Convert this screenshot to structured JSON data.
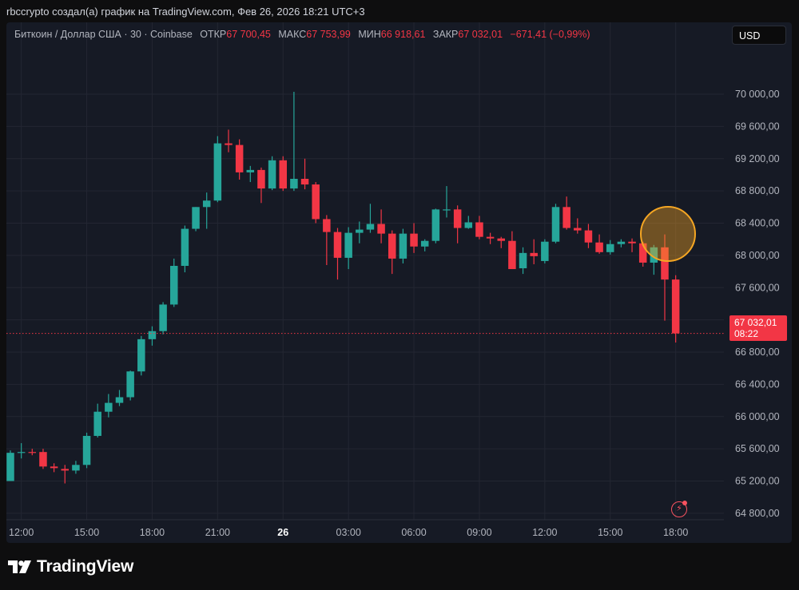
{
  "header": {
    "caption": "rbccrypto создал(а) график на TradingView.com, Фев 26, 2026 18:21 UTC+3"
  },
  "legend": {
    "symbol": "Биткоин / Доллар США · 30 · Coinbase",
    "open_label": "ОТКР",
    "open_value": "67 700,45",
    "high_label": "МАКС",
    "high_value": "67 753,99",
    "low_label": "МИН",
    "low_value": "66 918,61",
    "close_label": "ЗАКР",
    "close_value": "67 032,01",
    "change": "−671,41 (−0,99%)"
  },
  "currency_button": {
    "label": "USD"
  },
  "price_tag": {
    "price": "67 032,01",
    "countdown": "08:22"
  },
  "brand": {
    "name": "TradingView",
    "icon": "tradingview-logo-icon"
  },
  "alert_button": {
    "icon": "lightning-icon"
  },
  "colors": {
    "up": "#26a69a",
    "down": "#f23645",
    "background": "#161a25",
    "highlight": "#f5a623"
  },
  "chart_data": {
    "type": "candlestick",
    "title": "Биткоин / Доллар США · 30 · Coinbase",
    "interval_minutes": 30,
    "ylim": [
      64650,
      70350
    ],
    "y_ticks": [
      "70 000,00",
      "69 600,00",
      "69 200,00",
      "68 800,00",
      "68 400,00",
      "68 000,00",
      "67 600,00",
      "67 200,00",
      "66 800,00",
      "66 400,00",
      "66 000,00",
      "65 600,00",
      "65 200,00",
      "64 800,00"
    ],
    "y_tick_values": [
      70000,
      69600,
      69200,
      68800,
      68400,
      68000,
      67600,
      67200,
      66800,
      66400,
      66000,
      65600,
      65200,
      64800
    ],
    "x_tick_labels": [
      "12:00",
      "15:00",
      "18:00",
      "21:00",
      "26",
      "03:00",
      "06:00",
      "09:00",
      "12:00",
      "15:00",
      "18:00"
    ],
    "grid": true,
    "last_price": 67032.01,
    "highlight": "circle around candles near 16:30–17:00, price ≈ 68 000",
    "candles": [
      {
        "t": "Feb 25 11:30",
        "o": 65200,
        "h": 65580,
        "l": 65200,
        "c": 65550
      },
      {
        "t": "Feb 25 12:00",
        "o": 65550,
        "h": 65670,
        "l": 65480,
        "c": 65560
      },
      {
        "t": "Feb 25 12:30",
        "o": 65560,
        "h": 65600,
        "l": 65520,
        "c": 65550
      },
      {
        "t": "Feb 25 13:00",
        "o": 65560,
        "h": 65600,
        "l": 65350,
        "c": 65380
      },
      {
        "t": "Feb 25 13:30",
        "o": 65380,
        "h": 65420,
        "l": 65310,
        "c": 65360
      },
      {
        "t": "Feb 25 14:00",
        "o": 65350,
        "h": 65400,
        "l": 65170,
        "c": 65330
      },
      {
        "t": "Feb 25 14:30",
        "o": 65330,
        "h": 65450,
        "l": 65290,
        "c": 65400
      },
      {
        "t": "Feb 25 15:00",
        "o": 65400,
        "h": 65800,
        "l": 65360,
        "c": 65760
      },
      {
        "t": "Feb 25 15:30",
        "o": 65760,
        "h": 66160,
        "l": 65740,
        "c": 66060
      },
      {
        "t": "Feb 25 16:00",
        "o": 66060,
        "h": 66280,
        "l": 65990,
        "c": 66170
      },
      {
        "t": "Feb 25 16:30",
        "o": 66170,
        "h": 66330,
        "l": 66130,
        "c": 66240
      },
      {
        "t": "Feb 25 17:00",
        "o": 66240,
        "h": 66570,
        "l": 66200,
        "c": 66560
      },
      {
        "t": "Feb 25 17:30",
        "o": 66560,
        "h": 67000,
        "l": 66510,
        "c": 66960
      },
      {
        "t": "Feb 25 18:00",
        "o": 66960,
        "h": 67120,
        "l": 66880,
        "c": 67060
      },
      {
        "t": "Feb 25 18:30",
        "o": 67060,
        "h": 67420,
        "l": 67020,
        "c": 67390
      },
      {
        "t": "Feb 25 19:00",
        "o": 67390,
        "h": 67960,
        "l": 67360,
        "c": 67870
      },
      {
        "t": "Feb 25 19:30",
        "o": 67870,
        "h": 68370,
        "l": 67790,
        "c": 68330
      },
      {
        "t": "Feb 25 20:00",
        "o": 68330,
        "h": 68600,
        "l": 68300,
        "c": 68600
      },
      {
        "t": "Feb 25 20:30",
        "o": 68600,
        "h": 68780,
        "l": 68330,
        "c": 68680
      },
      {
        "t": "Feb 25 21:00",
        "o": 68680,
        "h": 69480,
        "l": 68660,
        "c": 69390
      },
      {
        "t": "Feb 25 21:30",
        "o": 69390,
        "h": 69560,
        "l": 69280,
        "c": 69370
      },
      {
        "t": "Feb 25 22:00",
        "o": 69370,
        "h": 69440,
        "l": 68940,
        "c": 69030
      },
      {
        "t": "Feb 25 22:30",
        "o": 69030,
        "h": 69110,
        "l": 68910,
        "c": 69060
      },
      {
        "t": "Feb 25 23:00",
        "o": 69060,
        "h": 69090,
        "l": 68650,
        "c": 68830
      },
      {
        "t": "Feb 25 23:30",
        "o": 68830,
        "h": 69230,
        "l": 68810,
        "c": 69180
      },
      {
        "t": "Feb 26 00:00",
        "o": 69180,
        "h": 69230,
        "l": 68800,
        "c": 68830
      },
      {
        "t": "Feb 26 00:30",
        "o": 68830,
        "h": 70030,
        "l": 68800,
        "c": 68950
      },
      {
        "t": "Feb 26 01:00",
        "o": 68950,
        "h": 69200,
        "l": 68820,
        "c": 68880
      },
      {
        "t": "Feb 26 01:30",
        "o": 68880,
        "h": 68910,
        "l": 68400,
        "c": 68450
      },
      {
        "t": "Feb 26 02:00",
        "o": 68450,
        "h": 68500,
        "l": 67880,
        "c": 68290
      },
      {
        "t": "Feb 26 02:30",
        "o": 68290,
        "h": 68340,
        "l": 67700,
        "c": 67970
      },
      {
        "t": "Feb 26 03:00",
        "o": 67970,
        "h": 68350,
        "l": 67830,
        "c": 68280
      },
      {
        "t": "Feb 26 03:30",
        "o": 68280,
        "h": 68420,
        "l": 68150,
        "c": 68320
      },
      {
        "t": "Feb 26 04:00",
        "o": 68320,
        "h": 68640,
        "l": 68280,
        "c": 68390
      },
      {
        "t": "Feb 26 04:30",
        "o": 68390,
        "h": 68570,
        "l": 68150,
        "c": 68270
      },
      {
        "t": "Feb 26 05:00",
        "o": 68270,
        "h": 68310,
        "l": 67770,
        "c": 67960
      },
      {
        "t": "Feb 26 05:30",
        "o": 67960,
        "h": 68330,
        "l": 67900,
        "c": 68270
      },
      {
        "t": "Feb 26 06:00",
        "o": 68270,
        "h": 68400,
        "l": 68030,
        "c": 68110
      },
      {
        "t": "Feb 26 06:30",
        "o": 68110,
        "h": 68200,
        "l": 68050,
        "c": 68180
      },
      {
        "t": "Feb 26 07:00",
        "o": 68180,
        "h": 68580,
        "l": 68150,
        "c": 68570
      },
      {
        "t": "Feb 26 07:30",
        "o": 68570,
        "h": 68860,
        "l": 68470,
        "c": 68570
      },
      {
        "t": "Feb 26 08:00",
        "o": 68570,
        "h": 68620,
        "l": 68150,
        "c": 68340
      },
      {
        "t": "Feb 26 08:30",
        "o": 68340,
        "h": 68490,
        "l": 68330,
        "c": 68410
      },
      {
        "t": "Feb 26 09:00",
        "o": 68410,
        "h": 68490,
        "l": 68200,
        "c": 68230
      },
      {
        "t": "Feb 26 09:30",
        "o": 68230,
        "h": 68280,
        "l": 68140,
        "c": 68210
      },
      {
        "t": "Feb 26 10:00",
        "o": 68210,
        "h": 68230,
        "l": 68090,
        "c": 68180
      },
      {
        "t": "Feb 26 10:30",
        "o": 68180,
        "h": 68300,
        "l": 67830,
        "c": 67830
      },
      {
        "t": "Feb 26 11:00",
        "o": 67840,
        "h": 68100,
        "l": 67770,
        "c": 68030
      },
      {
        "t": "Feb 26 11:30",
        "o": 68030,
        "h": 68200,
        "l": 67890,
        "c": 67990
      },
      {
        "t": "Feb 26 12:00",
        "o": 67930,
        "h": 68200,
        "l": 67900,
        "c": 68170
      },
      {
        "t": "Feb 26 12:30",
        "o": 68170,
        "h": 68640,
        "l": 68150,
        "c": 68600
      },
      {
        "t": "Feb 26 13:00",
        "o": 68600,
        "h": 68730,
        "l": 68320,
        "c": 68340
      },
      {
        "t": "Feb 26 13:30",
        "o": 68340,
        "h": 68460,
        "l": 68270,
        "c": 68310
      },
      {
        "t": "Feb 26 14:00",
        "o": 68310,
        "h": 68390,
        "l": 68090,
        "c": 68160
      },
      {
        "t": "Feb 26 14:30",
        "o": 68160,
        "h": 68260,
        "l": 68020,
        "c": 68040
      },
      {
        "t": "Feb 26 15:00",
        "o": 68040,
        "h": 68190,
        "l": 68010,
        "c": 68140
      },
      {
        "t": "Feb 26 15:30",
        "o": 68140,
        "h": 68200,
        "l": 68100,
        "c": 68170
      },
      {
        "t": "Feb 26 16:00",
        "o": 68170,
        "h": 68210,
        "l": 68040,
        "c": 68150
      },
      {
        "t": "Feb 26 16:30",
        "o": 68150,
        "h": 68170,
        "l": 67860,
        "c": 67910
      },
      {
        "t": "Feb 26 17:00",
        "o": 67910,
        "h": 68130,
        "l": 67760,
        "c": 68100
      },
      {
        "t": "Feb 26 17:30",
        "o": 68100,
        "h": 68260,
        "l": 67190,
        "c": 67700
      },
      {
        "t": "Feb 26 18:00",
        "o": 67700.45,
        "h": 67753.99,
        "l": 66918.61,
        "c": 67032.01
      }
    ]
  }
}
